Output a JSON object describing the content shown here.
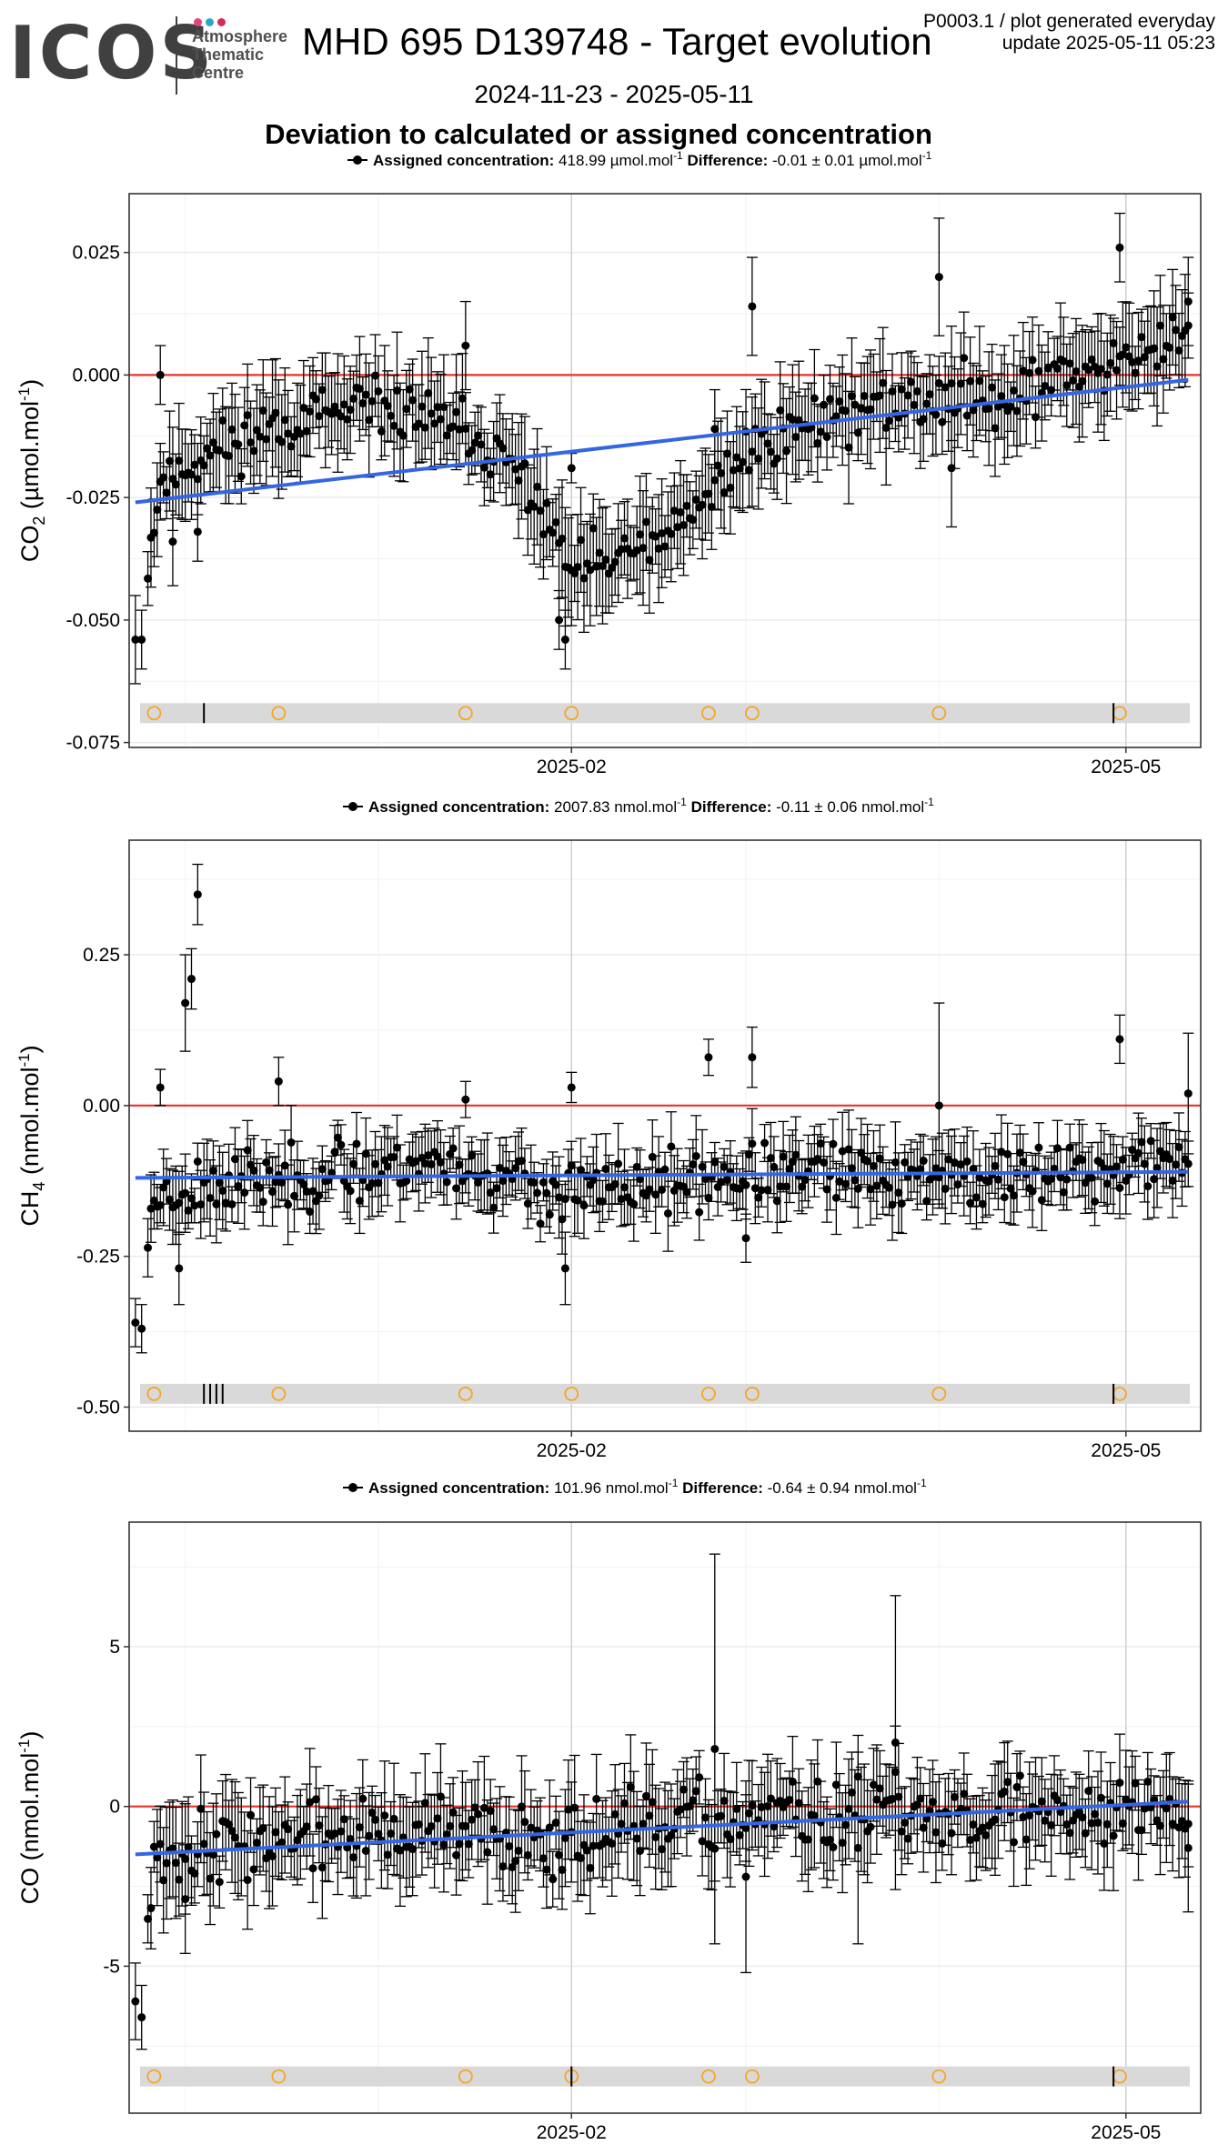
{
  "header": {
    "logo_word": "ICOS",
    "logo_sub": "Atmosphere\nThematic\nCentre",
    "logo_dot_colors": [
      "#e0457b",
      "#2fa6c8",
      "#d52b5a"
    ],
    "title": "MHD 695 D139748 - Target evolution",
    "date_range": "2024-11-23 - 2025-05-11",
    "subtitle": "Deviation to calculated or assigned concentration",
    "plot_id": "P0003.1 / plot generated everyday",
    "update": "update  2025-05-11 05:23"
  },
  "colors": {
    "points": "#000000",
    "zero_line": "#e8302a",
    "trend": "#3366e0",
    "events": "#f5a623",
    "event_band": "#d9d9d9",
    "grid": "#ebebeb"
  },
  "chart_data": [
    {
      "type": "scatter",
      "species": "CO2",
      "ylabel": "CO",
      "ylabel_sub": "2",
      "ylabel_unit_pre": " (µmol.mol",
      "ylabel_unit_sup": "-1",
      "ylabel_unit_post": ")",
      "legend_assigned_label": "Assigned concentration:",
      "legend_assigned_value": "418.99 µmol.mol",
      "legend_assigned_sup": "-1",
      "legend_diff_label": "Difference:",
      "legend_diff_value": "-0.01 ± 0.01 µmol.mol",
      "legend_diff_sup": "-1",
      "ylim": [
        -0.076,
        0.037
      ],
      "yticks": [
        -0.075,
        -0.05,
        -0.025,
        0.0,
        0.025
      ],
      "ytick_labels": [
        "-0.075",
        "-0.050",
        "-0.025",
        "0.000",
        "0.025"
      ],
      "xlim": [
        "2024-11-22",
        "2025-05-13"
      ],
      "xticks": [
        "2025-02-01",
        "2025-05-01"
      ],
      "xtick_labels": [
        "2025-02",
        "2025-05"
      ],
      "trend": {
        "start": [
          "2024-11-23",
          -0.026
        ],
        "end": [
          "2025-05-11",
          -0.001
        ]
      },
      "event_band_y": -0.069,
      "event_circles": [
        "2024-11-26",
        "2024-12-16",
        "2025-01-15",
        "2025-02-01",
        "2025-02-23",
        "2025-03-02",
        "2025-04-01",
        "2025-04-30"
      ],
      "event_ticks": [
        "2024-12-04",
        "2025-04-29"
      ],
      "series_anchors": [
        [
          "2024-11-23",
          -0.054
        ],
        [
          "2024-11-27",
          -0.022
        ],
        [
          "2024-12-05",
          -0.016
        ],
        [
          "2024-12-15",
          -0.01
        ],
        [
          "2024-12-25",
          -0.008
        ],
        [
          "2025-01-05",
          -0.007
        ],
        [
          "2025-01-15",
          -0.012
        ],
        [
          "2025-01-25",
          -0.022
        ],
        [
          "2025-02-01",
          -0.04
        ],
        [
          "2025-02-10",
          -0.037
        ],
        [
          "2025-02-20",
          -0.03
        ],
        [
          "2025-03-01",
          -0.015
        ],
        [
          "2025-03-15",
          -0.008
        ],
        [
          "2025-04-01",
          -0.005
        ],
        [
          "2025-04-15",
          -0.003
        ],
        [
          "2025-05-01",
          0.004
        ],
        [
          "2025-05-11",
          0.008
        ]
      ],
      "noise": 0.004,
      "err": 0.009,
      "seed": 11,
      "outliers": [
        {
          "x": "2024-11-23",
          "y": -0.054,
          "err": 0.009
        },
        {
          "x": "2024-11-24",
          "y": -0.054,
          "err": 0.006
        },
        {
          "x": "2024-11-27",
          "y": 0.0,
          "err": 0.006
        },
        {
          "x": "2024-11-29",
          "y": -0.034,
          "err": 0.009
        },
        {
          "x": "2024-12-03",
          "y": -0.032,
          "err": 0.006
        },
        {
          "x": "2025-01-15",
          "y": 0.006,
          "err": 0.009
        },
        {
          "x": "2025-01-30",
          "y": -0.05,
          "err": 0.006
        },
        {
          "x": "2025-01-31",
          "y": -0.054,
          "err": 0.006
        },
        {
          "x": "2025-02-01",
          "y": -0.019,
          "err": 0.003
        },
        {
          "x": "2025-02-24",
          "y": -0.011,
          "err": 0.008
        },
        {
          "x": "2025-03-02",
          "y": 0.014,
          "err": 0.01
        },
        {
          "x": "2025-04-01",
          "y": 0.02,
          "err": 0.012
        },
        {
          "x": "2025-04-03",
          "y": -0.019,
          "err": 0.012
        },
        {
          "x": "2025-04-30",
          "y": 0.026,
          "err": 0.007
        },
        {
          "x": "2025-05-11",
          "y": 0.015,
          "err": 0.009
        }
      ]
    },
    {
      "type": "scatter",
      "species": "CH4",
      "ylabel": "CH",
      "ylabel_sub": "4",
      "ylabel_unit_pre": " (nmol.mol",
      "ylabel_unit_sup": "-1",
      "ylabel_unit_post": ")",
      "legend_assigned_label": "Assigned concentration:",
      "legend_assigned_value": "2007.83 nmol.mol",
      "legend_assigned_sup": "-1",
      "legend_diff_label": "Difference:",
      "legend_diff_value": "-0.11 ± 0.06 nmol.mol",
      "legend_diff_sup": "-1",
      "ylim": [
        -0.54,
        0.44
      ],
      "yticks": [
        -0.5,
        -0.25,
        0.0,
        0.25
      ],
      "ytick_labels": [
        "-0.50",
        "-0.25",
        "0.00",
        "0.25"
      ],
      "xlim": [
        "2024-11-22",
        "2025-05-13"
      ],
      "xticks": [
        "2025-02-01",
        "2025-05-01"
      ],
      "xtick_labels": [
        "2025-02",
        "2025-05"
      ],
      "trend": {
        "start": [
          "2024-11-23",
          -0.12
        ],
        "end": [
          "2025-05-11",
          -0.11
        ]
      },
      "event_band_y": -0.478,
      "event_circles": [
        "2024-11-26",
        "2024-12-16",
        "2025-01-15",
        "2025-02-01",
        "2025-02-23",
        "2025-03-02",
        "2025-04-01",
        "2025-04-30"
      ],
      "event_ticks": [
        "2024-12-04",
        "2024-12-05",
        "2024-12-06",
        "2024-12-07",
        "2025-04-29"
      ],
      "series_anchors": [
        [
          "2024-11-23",
          -0.36
        ],
        [
          "2024-11-26",
          -0.15
        ],
        [
          "2024-12-05",
          -0.13
        ],
        [
          "2024-12-20",
          -0.12
        ],
        [
          "2025-01-10",
          -0.09
        ],
        [
          "2025-01-30",
          -0.15
        ],
        [
          "2025-02-15",
          -0.13
        ],
        [
          "2025-03-15",
          -0.11
        ],
        [
          "2025-04-15",
          -0.12
        ],
        [
          "2025-05-11",
          -0.09
        ]
      ],
      "noise": 0.035,
      "err": 0.05,
      "seed": 23,
      "outliers": [
        {
          "x": "2024-11-23",
          "y": -0.36,
          "err": 0.04
        },
        {
          "x": "2024-11-24",
          "y": -0.37,
          "err": 0.04
        },
        {
          "x": "2024-11-27",
          "y": 0.03,
          "err": 0.03
        },
        {
          "x": "2024-11-30",
          "y": -0.27,
          "err": 0.06
        },
        {
          "x": "2024-12-01",
          "y": 0.17,
          "err": 0.08
        },
        {
          "x": "2024-12-02",
          "y": 0.21,
          "err": 0.05
        },
        {
          "x": "2024-12-03",
          "y": 0.35,
          "err": 0.05
        },
        {
          "x": "2024-12-16",
          "y": 0.04,
          "err": 0.04
        },
        {
          "x": "2025-01-15",
          "y": 0.01,
          "err": 0.03
        },
        {
          "x": "2025-01-31",
          "y": -0.27,
          "err": 0.06
        },
        {
          "x": "2025-02-01",
          "y": 0.03,
          "err": 0.025
        },
        {
          "x": "2025-02-23",
          "y": 0.08,
          "err": 0.03
        },
        {
          "x": "2025-03-02",
          "y": 0.08,
          "err": 0.05
        },
        {
          "x": "2025-03-01",
          "y": -0.22,
          "err": 0.04
        },
        {
          "x": "2025-04-01",
          "y": 0.0,
          "err": 0.17
        },
        {
          "x": "2025-04-30",
          "y": 0.11,
          "err": 0.04
        },
        {
          "x": "2025-05-11",
          "y": 0.02,
          "err": 0.1
        }
      ]
    },
    {
      "type": "scatter",
      "species": "CO",
      "ylabel": "CO",
      "ylabel_sub": "",
      "ylabel_unit_pre": " (nmol.mol",
      "ylabel_unit_sup": "-1",
      "ylabel_unit_post": ")",
      "legend_assigned_label": "Assigned concentration:",
      "legend_assigned_value": "101.96 nmol.mol",
      "legend_assigned_sup": "-1",
      "legend_diff_label": "Difference:",
      "legend_diff_value": "-0.64 ± 0.94 nmol.mol",
      "legend_diff_sup": "-1",
      "ylim": [
        -9.6,
        8.9
      ],
      "yticks": [
        -5,
        0,
        5
      ],
      "ytick_labels": [
        "-5",
        "0",
        "5"
      ],
      "xlim": [
        "2024-11-22",
        "2025-05-13"
      ],
      "xticks": [
        "2025-02-01",
        "2025-05-01"
      ],
      "xtick_labels": [
        "2025-02",
        "2025-05"
      ],
      "trend": {
        "start": [
          "2024-11-23",
          -1.5
        ],
        "end": [
          "2025-05-11",
          0.15
        ]
      },
      "event_band_y": -8.45,
      "event_circles": [
        "2024-11-26",
        "2024-12-16",
        "2025-01-15",
        "2025-02-01",
        "2025-02-23",
        "2025-03-02",
        "2025-04-01",
        "2025-04-30"
      ],
      "event_ticks": [
        "2025-02-01",
        "2025-04-29"
      ],
      "series_anchors": [
        [
          "2024-11-23",
          -6.2
        ],
        [
          "2024-11-26",
          -1.4
        ],
        [
          "2024-12-10",
          -1.1
        ],
        [
          "2025-01-01",
          -0.9
        ],
        [
          "2025-02-01",
          -0.9
        ],
        [
          "2025-03-01",
          -0.4
        ],
        [
          "2025-04-01",
          -0.2
        ],
        [
          "2025-05-11",
          -0.1
        ]
      ],
      "noise": 0.8,
      "err": 1.3,
      "seed": 37,
      "outliers": [
        {
          "x": "2024-11-23",
          "y": -6.1,
          "err": 1.2
        },
        {
          "x": "2024-11-24",
          "y": -6.6,
          "err": 1.0
        },
        {
          "x": "2024-12-01",
          "y": -2.9,
          "err": 1.7
        },
        {
          "x": "2025-02-24",
          "y": 1.8,
          "err": 6.1
        },
        {
          "x": "2025-03-01",
          "y": -2.2,
          "err": 3.0
        },
        {
          "x": "2025-03-25",
          "y": 2.0,
          "err": 4.6
        },
        {
          "x": "2025-03-19",
          "y": -1.3,
          "err": 3.0
        },
        {
          "x": "2025-05-11",
          "y": -1.3,
          "err": 2.0
        }
      ]
    }
  ]
}
